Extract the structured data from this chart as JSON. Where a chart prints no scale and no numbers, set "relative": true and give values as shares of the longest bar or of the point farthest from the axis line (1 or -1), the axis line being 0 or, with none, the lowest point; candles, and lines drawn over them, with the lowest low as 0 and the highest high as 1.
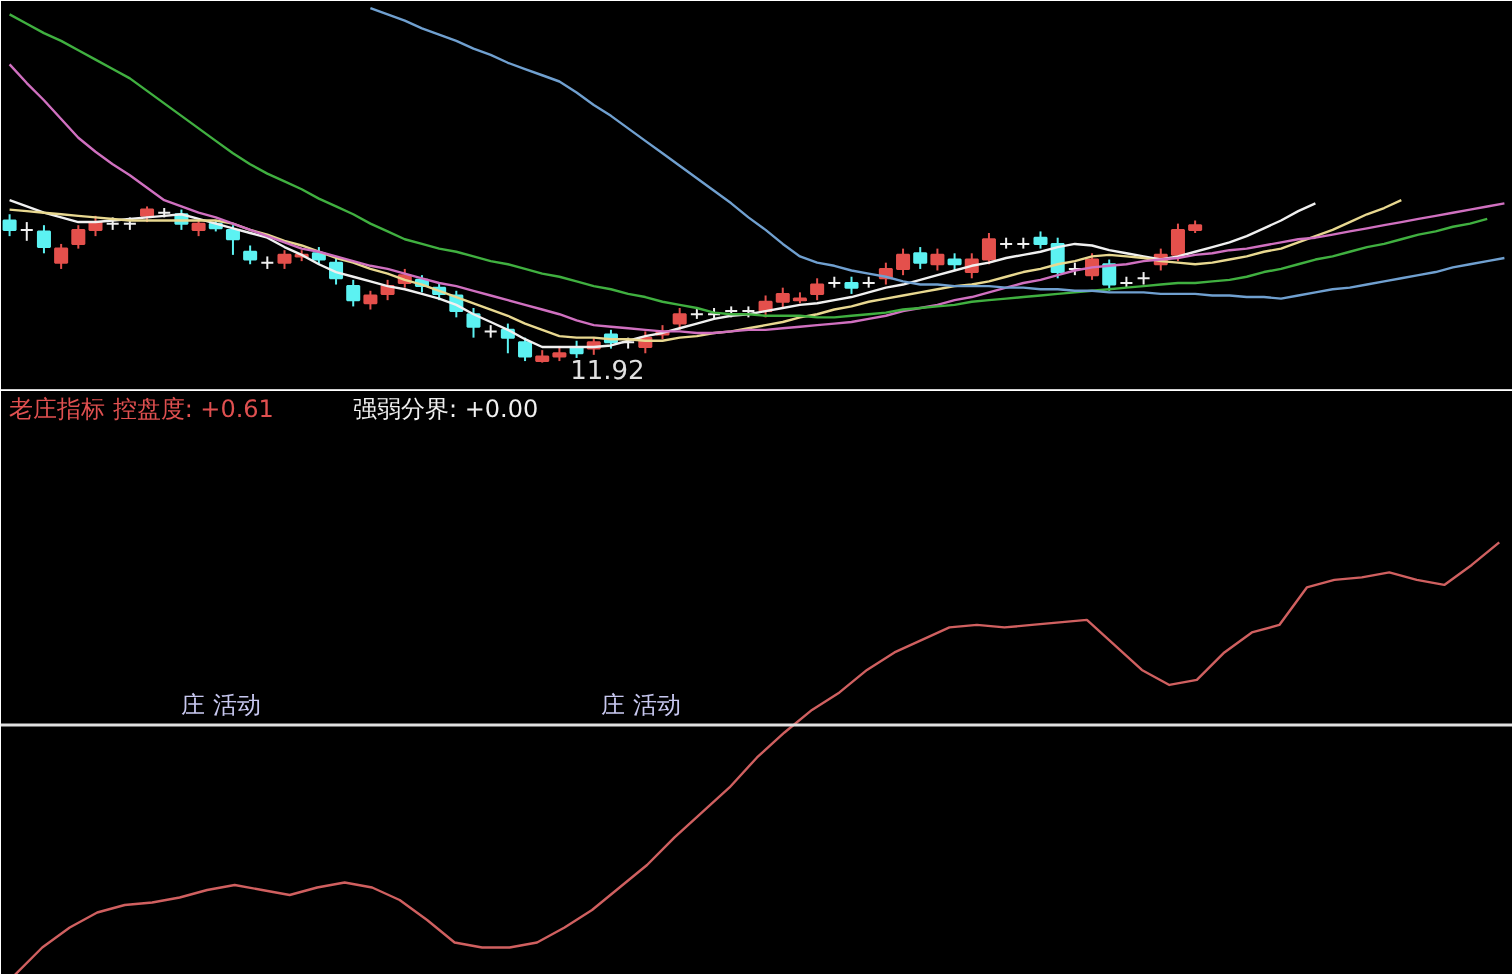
{
  "chart_data": [
    {
      "type": "candlestick",
      "relative": true,
      "categories": [
        null,
        null,
        null,
        null,
        null,
        null,
        null,
        null,
        null,
        null,
        null,
        null,
        null,
        null,
        null,
        null,
        null,
        null,
        null,
        null,
        null,
        null,
        null,
        null,
        null,
        null,
        null,
        null,
        null,
        null,
        null,
        null,
        null,
        null,
        null,
        null,
        null,
        null,
        null,
        null,
        null,
        null,
        null,
        null,
        null,
        null,
        null,
        null,
        null,
        null,
        null,
        null,
        null,
        null,
        null,
        null,
        null,
        null,
        null,
        null,
        null,
        null,
        null,
        null,
        null,
        null,
        null,
        null,
        null,
        null,
        null,
        null,
        null,
        null,
        null,
        null,
        null,
        null,
        null,
        null,
        null,
        null,
        null,
        null,
        null,
        null,
        null,
        null
      ],
      "ohlc": [
        [
          0.91,
          0.95,
          0.81,
          0.85
        ],
        [
          0.85,
          0.9,
          0.78,
          0.85
        ],
        [
          0.84,
          0.88,
          0.7,
          0.74
        ],
        [
          0.64,
          0.76,
          0.6,
          0.73
        ],
        [
          0.76,
          0.88,
          0.73,
          0.85
        ],
        [
          0.85,
          0.94,
          0.81,
          0.9
        ],
        [
          0.89,
          0.93,
          0.85,
          0.89
        ],
        [
          0.89,
          0.93,
          0.85,
          0.89
        ],
        [
          0.94,
          1.0,
          0.9,
          0.98
        ],
        [
          0.96,
          0.99,
          0.93,
          0.96
        ],
        [
          0.95,
          0.98,
          0.85,
          0.89
        ],
        [
          0.85,
          0.91,
          0.81,
          0.89
        ],
        [
          0.89,
          0.91,
          0.84,
          0.86
        ],
        [
          0.85,
          0.88,
          0.69,
          0.79
        ],
        [
          0.71,
          0.75,
          0.63,
          0.66
        ],
        [
          0.64,
          0.68,
          0.6,
          0.64
        ],
        [
          0.64,
          0.72,
          0.6,
          0.69
        ],
        [
          0.68,
          0.72,
          0.65,
          0.69
        ],
        [
          0.7,
          0.74,
          0.63,
          0.66
        ],
        [
          0.64,
          0.68,
          0.5,
          0.54
        ],
        [
          0.49,
          0.53,
          0.36,
          0.4
        ],
        [
          0.38,
          0.46,
          0.34,
          0.43
        ],
        [
          0.44,
          0.53,
          0.4,
          0.49
        ],
        [
          0.51,
          0.6,
          0.48,
          0.56
        ],
        [
          0.53,
          0.56,
          0.45,
          0.49
        ],
        [
          0.48,
          0.51,
          0.4,
          0.44
        ],
        [
          0.43,
          0.46,
          0.29,
          0.33
        ],
        [
          0.31,
          0.35,
          0.16,
          0.23
        ],
        [
          0.2,
          0.24,
          0.16,
          0.2
        ],
        [
          0.21,
          0.25,
          0.06,
          0.16
        ],
        [
          0.13,
          0.16,
          0.01,
          0.04
        ],
        [
          0.01,
          0.08,
          0.0,
          0.04
        ],
        [
          0.04,
          0.1,
          0.01,
          0.06
        ],
        [
          0.1,
          0.14,
          0.03,
          0.06
        ],
        [
          0.09,
          0.16,
          0.05,
          0.13
        ],
        [
          0.18,
          0.21,
          0.09,
          0.13
        ],
        [
          0.13,
          0.16,
          0.09,
          0.13
        ],
        [
          0.1,
          0.2,
          0.06,
          0.16
        ],
        [
          0.18,
          0.24,
          0.15,
          0.2
        ],
        [
          0.25,
          0.35,
          0.21,
          0.31
        ],
        [
          0.31,
          0.35,
          0.28,
          0.31
        ],
        [
          0.31,
          0.35,
          0.28,
          0.31
        ],
        [
          0.33,
          0.36,
          0.29,
          0.33
        ],
        [
          0.33,
          0.36,
          0.29,
          0.33
        ],
        [
          0.33,
          0.43,
          0.29,
          0.39
        ],
        [
          0.39,
          0.48,
          0.35,
          0.44
        ],
        [
          0.4,
          0.45,
          0.38,
          0.41
        ],
        [
          0.44,
          0.54,
          0.4,
          0.5
        ],
        [
          0.51,
          0.55,
          0.48,
          0.51
        ],
        [
          0.51,
          0.55,
          0.44,
          0.48
        ],
        [
          0.51,
          0.55,
          0.48,
          0.51
        ],
        [
          0.54,
          0.64,
          0.5,
          0.6
        ],
        [
          0.6,
          0.73,
          0.56,
          0.69
        ],
        [
          0.7,
          0.74,
          0.6,
          0.64
        ],
        [
          0.63,
          0.73,
          0.59,
          0.69
        ],
        [
          0.66,
          0.7,
          0.59,
          0.63
        ],
        [
          0.58,
          0.7,
          0.54,
          0.66
        ],
        [
          0.66,
          0.83,
          0.63,
          0.79
        ],
        [
          0.76,
          0.8,
          0.73,
          0.76
        ],
        [
          0.76,
          0.8,
          0.73,
          0.76
        ],
        [
          0.8,
          0.84,
          0.73,
          0.76
        ],
        [
          0.76,
          0.8,
          0.54,
          0.58
        ],
        [
          0.6,
          0.64,
          0.56,
          0.6
        ],
        [
          0.56,
          0.7,
          0.53,
          0.66
        ],
        [
          0.63,
          0.66,
          0.46,
          0.5
        ],
        [
          0.51,
          0.55,
          0.48,
          0.51
        ],
        [
          0.54,
          0.58,
          0.5,
          0.54
        ],
        [
          0.63,
          0.73,
          0.59,
          0.69
        ],
        [
          0.69,
          0.89,
          0.65,
          0.85
        ],
        [
          0.85,
          0.91,
          0.83,
          0.88
        ],
        null,
        null,
        null,
        null,
        null,
        null,
        null,
        null,
        null,
        null,
        null,
        null,
        null,
        null,
        null,
        null,
        null,
        null
      ],
      "colors": [
        "#5cf2f2",
        "#f0f0f0",
        "#5cf2f2",
        "#e4504c",
        "#e4504c",
        "#e4504c",
        "#f0f0f0",
        "#f0f0f0",
        "#e4504c",
        "#f0f0f0",
        "#5cf2f2",
        "#e4504c",
        "#5cf2f2",
        "#5cf2f2",
        "#5cf2f2",
        "#f0f0f0",
        "#e4504c",
        "#e4504c",
        "#5cf2f2",
        "#5cf2f2",
        "#5cf2f2",
        "#e4504c",
        "#e4504c",
        "#e4504c",
        "#5cf2f2",
        "#5cf2f2",
        "#5cf2f2",
        "#5cf2f2",
        "#f0f0f0",
        "#5cf2f2",
        "#5cf2f2",
        "#e4504c",
        "#e4504c",
        "#5cf2f2",
        "#e4504c",
        "#5cf2f2",
        "#f0f0f0",
        "#e4504c",
        "#e4504c",
        "#e4504c",
        "#f0f0f0",
        "#f0f0f0",
        "#f0f0f0",
        "#f0f0f0",
        "#e4504c",
        "#e4504c",
        "#e4504c",
        "#e4504c",
        "#f0f0f0",
        "#5cf2f2",
        "#f0f0f0",
        "#e4504c",
        "#e4504c",
        "#5cf2f2",
        "#e4504c",
        "#5cf2f2",
        "#e4504c",
        "#e4504c",
        "#f0f0f0",
        "#f0f0f0",
        "#5cf2f2",
        "#5cf2f2",
        "#f0f0f0",
        "#e4504c",
        "#5cf2f2",
        "#f0f0f0",
        "#f0f0f0",
        "#e4504c",
        "#e4504c",
        "#e4504c",
        null,
        null,
        null,
        null,
        null,
        null,
        null,
        null,
        null,
        null,
        null,
        null,
        null,
        null,
        null,
        null,
        null,
        null
      ],
      "series": [
        {
          "type": "line",
          "color": "#f0f0f0",
          "values": [
            1.04,
            1.0,
            0.96,
            0.93,
            0.9,
            0.9,
            0.91,
            0.92,
            0.93,
            0.94,
            0.95,
            0.92,
            0.89,
            0.86,
            0.83,
            0.8,
            0.74,
            0.69,
            0.63,
            0.58,
            0.55,
            0.52,
            0.49,
            0.47,
            0.44,
            0.41,
            0.37,
            0.31,
            0.26,
            0.21,
            0.15,
            0.1,
            0.1,
            0.1,
            0.1,
            0.11,
            0.14,
            0.17,
            0.19,
            0.22,
            0.25,
            0.28,
            0.3,
            0.31,
            0.33,
            0.35,
            0.37,
            0.38,
            0.4,
            0.42,
            0.45,
            0.48,
            0.5,
            0.53,
            0.56,
            0.59,
            0.62,
            0.64,
            0.67,
            0.69,
            0.71,
            0.74,
            0.76,
            0.75,
            0.72,
            0.7,
            0.68,
            0.66,
            0.68,
            0.71,
            0.74,
            0.77,
            0.81,
            0.86,
            0.91,
            0.97,
            1.02,
            null,
            null,
            null,
            null,
            null,
            null,
            null,
            null,
            null,
            null,
            null
          ]
        },
        {
          "type": "line",
          "color": "#e8d890",
          "values": [
            0.98,
            0.97,
            0.96,
            0.95,
            0.94,
            0.93,
            0.92,
            0.91,
            0.91,
            0.91,
            0.91,
            0.91,
            0.91,
            0.89,
            0.85,
            0.82,
            0.78,
            0.75,
            0.71,
            0.67,
            0.64,
            0.6,
            0.57,
            0.53,
            0.5,
            0.46,
            0.42,
            0.38,
            0.34,
            0.3,
            0.25,
            0.21,
            0.17,
            0.16,
            0.16,
            0.15,
            0.15,
            0.14,
            0.14,
            0.16,
            0.17,
            0.19,
            0.2,
            0.22,
            0.24,
            0.26,
            0.29,
            0.31,
            0.34,
            0.36,
            0.39,
            0.41,
            0.43,
            0.45,
            0.47,
            0.49,
            0.5,
            0.52,
            0.55,
            0.58,
            0.6,
            0.63,
            0.65,
            0.68,
            0.69,
            0.68,
            0.67,
            0.65,
            0.64,
            0.63,
            0.64,
            0.66,
            0.68,
            0.71,
            0.73,
            0.77,
            0.81,
            0.85,
            0.9,
            0.95,
            0.99,
            1.04,
            null,
            null,
            null,
            null,
            null,
            null
          ]
        },
        {
          "type": "line",
          "color": "#d070c0",
          "values": [
            1.91,
            1.79,
            1.68,
            1.56,
            1.44,
            1.35,
            1.27,
            1.2,
            1.12,
            1.04,
            1.0,
            0.96,
            0.93,
            0.89,
            0.85,
            0.81,
            0.77,
            0.73,
            0.71,
            0.68,
            0.65,
            0.62,
            0.6,
            0.57,
            0.54,
            0.51,
            0.49,
            0.46,
            0.43,
            0.4,
            0.37,
            0.34,
            0.31,
            0.27,
            0.24,
            0.23,
            0.22,
            0.21,
            0.2,
            0.2,
            0.19,
            0.19,
            0.2,
            0.21,
            0.21,
            0.22,
            0.23,
            0.24,
            0.25,
            0.26,
            0.28,
            0.3,
            0.33,
            0.35,
            0.37,
            0.4,
            0.42,
            0.45,
            0.48,
            0.51,
            0.53,
            0.56,
            0.59,
            0.61,
            0.62,
            0.63,
            0.65,
            0.66,
            0.67,
            0.69,
            0.7,
            0.72,
            0.73,
            0.75,
            0.77,
            0.79,
            0.8,
            0.82,
            0.84,
            0.86,
            0.88,
            0.9,
            0.92,
            0.94,
            0.96,
            0.98,
            1.0,
            1.02
          ]
        },
        {
          "type": "line",
          "color": "#40b040",
          "values": [
            2.23,
            2.17,
            2.11,
            2.06,
            2.0,
            1.94,
            1.88,
            1.82,
            1.74,
            1.66,
            1.58,
            1.5,
            1.42,
            1.34,
            1.27,
            1.21,
            1.16,
            1.11,
            1.05,
            1.0,
            0.95,
            0.89,
            0.84,
            0.79,
            0.76,
            0.73,
            0.71,
            0.68,
            0.65,
            0.63,
            0.6,
            0.57,
            0.55,
            0.52,
            0.49,
            0.47,
            0.44,
            0.42,
            0.39,
            0.37,
            0.35,
            0.32,
            0.31,
            0.31,
            0.3,
            0.3,
            0.3,
            0.29,
            0.29,
            0.3,
            0.31,
            0.32,
            0.34,
            0.35,
            0.36,
            0.37,
            0.39,
            0.4,
            0.41,
            0.42,
            0.43,
            0.44,
            0.45,
            0.46,
            0.47,
            0.48,
            0.49,
            0.5,
            0.51,
            0.51,
            0.52,
            0.53,
            0.55,
            0.58,
            0.6,
            0.63,
            0.66,
            0.68,
            0.71,
            0.74,
            0.76,
            0.79,
            0.82,
            0.84,
            0.87,
            0.89,
            0.92,
            null
          ]
        },
        {
          "type": "line",
          "color": "#70a0d0",
          "values": [
            null,
            null,
            null,
            null,
            null,
            null,
            null,
            null,
            null,
            null,
            null,
            null,
            null,
            null,
            null,
            null,
            null,
            null,
            null,
            null,
            null,
            2.27,
            2.23,
            2.19,
            2.14,
            2.1,
            2.06,
            2.01,
            1.97,
            1.92,
            1.88,
            1.84,
            1.8,
            1.73,
            1.65,
            1.58,
            1.5,
            1.42,
            1.34,
            1.26,
            1.18,
            1.1,
            1.02,
            0.93,
            0.85,
            0.76,
            0.68,
            0.64,
            0.62,
            0.59,
            0.57,
            0.55,
            0.52,
            0.5,
            0.5,
            0.49,
            0.49,
            0.49,
            0.48,
            0.48,
            0.47,
            0.47,
            0.46,
            0.46,
            0.45,
            0.45,
            0.45,
            0.44,
            0.44,
            0.44,
            0.43,
            0.43,
            0.42,
            0.42,
            0.41,
            0.43,
            0.45,
            0.47,
            0.48,
            0.5,
            0.52,
            0.54,
            0.56,
            0.58,
            0.61,
            0.63,
            0.65,
            0.67
          ]
        }
      ],
      "annotations": [
        "11.92"
      ]
    },
    {
      "type": "line",
      "relative": true,
      "categories": [
        null,
        null,
        null,
        null,
        null,
        null,
        null,
        null,
        null,
        null,
        null,
        null,
        null,
        null,
        null,
        null,
        null,
        null,
        null,
        null,
        null,
        null,
        null,
        null,
        null,
        null,
        null,
        null,
        null,
        null,
        null,
        null,
        null,
        null,
        null,
        null,
        null,
        null,
        null,
        null,
        null,
        null,
        null,
        null,
        null,
        null,
        null,
        null,
        null,
        null,
        null,
        null,
        null,
        null,
        null
      ],
      "series": [
        {
          "color": "#d06060",
          "values": [
            -1.0,
            -0.89,
            -0.81,
            -0.75,
            -0.72,
            -0.71,
            -0.69,
            -0.66,
            -0.64,
            -0.66,
            -0.68,
            -0.65,
            -0.63,
            -0.65,
            -0.7,
            -0.78,
            -0.87,
            -0.89,
            -0.89,
            -0.87,
            -0.81,
            -0.74,
            -0.65,
            -0.56,
            -0.45,
            -0.35,
            -0.25,
            -0.13,
            -0.03,
            0.06,
            0.13,
            0.22,
            0.29,
            0.34,
            0.39,
            0.4,
            0.39,
            0.4,
            0.41,
            0.42,
            0.32,
            0.22,
            0.16,
            0.18,
            0.29,
            0.37,
            0.4,
            0.55,
            0.58,
            0.59,
            0.61,
            0.58,
            0.56,
            0.64,
            0.73
          ]
        }
      ],
      "ref_lines": [
        {
          "axis": "y",
          "value": 0,
          "color": "#e0e0e0"
        }
      ],
      "annotations": [
        "老庄指标 控盘度: +0.61",
        "强弱分界: +0.00",
        "庄 活动",
        "庄 活动"
      ]
    }
  ]
}
